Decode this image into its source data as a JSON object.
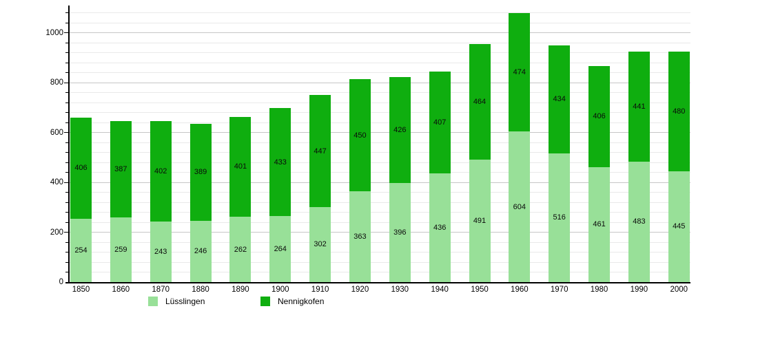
{
  "chart_data": {
    "type": "bar",
    "stacked": true,
    "title": "",
    "xlabel": "",
    "ylabel": "",
    "categories": [
      "1850",
      "1860",
      "1870",
      "1880",
      "1890",
      "1900",
      "1910",
      "1920",
      "1930",
      "1940",
      "1950",
      "1960",
      "1970",
      "1980",
      "1990",
      "2000"
    ],
    "series": [
      {
        "name": "Lüsslingen",
        "color": "#98e098",
        "values": [
          254,
          259,
          243,
          246,
          262,
          264,
          302,
          363,
          396,
          436,
          491,
          604,
          516,
          461,
          483,
          445
        ]
      },
      {
        "name": "Nennigkofen",
        "color": "#0fae0f",
        "values": [
          406,
          387,
          402,
          389,
          401,
          433,
          447,
          450,
          426,
          407,
          464,
          474,
          434,
          406,
          441,
          480
        ]
      }
    ],
    "ylim": [
      0,
      1100
    ],
    "y_labeled_ticks": [
      "0",
      "200",
      "400",
      "600",
      "800",
      "1000"
    ],
    "y_label_values": [
      0,
      200,
      400,
      600,
      800,
      1000
    ],
    "grid_step": 40,
    "major_step": 200,
    "grid": true,
    "value_labels": true,
    "legend_position": "bottom-left"
  },
  "legend": {
    "items": [
      {
        "label": "Lüsslingen"
      },
      {
        "label": "Nennigkofen"
      }
    ]
  },
  "colors": {
    "series_light": "#98e098",
    "series_dark": "#0fae0f",
    "grid_minor": "#e9e9e9",
    "grid_major": "#c6c6c6",
    "axis": "#000000",
    "text": "#000000",
    "background": "#ffffff"
  }
}
